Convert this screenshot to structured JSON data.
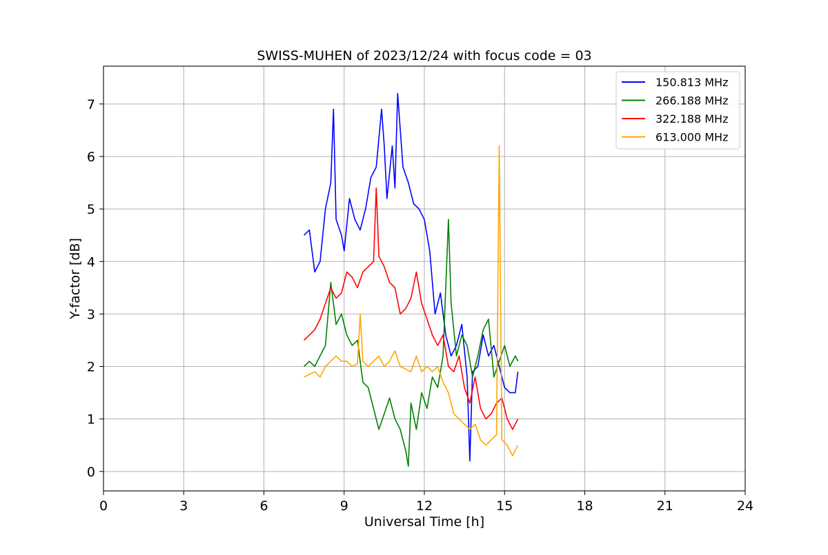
{
  "chart_data": {
    "type": "line",
    "title": "SWISS-MUHEN of 2023/12/24 with focus code = 03",
    "xlabel": "Universal Time [h]",
    "ylabel": "Y-factor [dB]",
    "xlim": [
      0,
      24
    ],
    "ylim": [
      -0.37,
      7.72
    ],
    "xticks": [
      0,
      3,
      6,
      9,
      12,
      15,
      18,
      21,
      24
    ],
    "yticks": [
      0,
      1,
      2,
      3,
      4,
      5,
      6,
      7
    ],
    "grid": true,
    "legend_position": "top-right",
    "series": [
      {
        "name": "150.813 MHz",
        "color": "#0000ff",
        "x": [
          7.5,
          7.7,
          7.9,
          8.1,
          8.3,
          8.5,
          8.6,
          8.7,
          8.9,
          9.0,
          9.2,
          9.4,
          9.6,
          9.8,
          10.0,
          10.2,
          10.4,
          10.5,
          10.6,
          10.8,
          10.9,
          11.0,
          11.2,
          11.4,
          11.6,
          11.8,
          12.0,
          12.2,
          12.4,
          12.6,
          12.8,
          13.0,
          13.2,
          13.4,
          13.6,
          13.7,
          13.8,
          14.0,
          14.2,
          14.4,
          14.6,
          14.8,
          15.0,
          15.2,
          15.4,
          15.5
        ],
        "values": [
          4.5,
          4.6,
          3.8,
          4.0,
          5.0,
          5.5,
          6.9,
          4.8,
          4.5,
          4.2,
          5.2,
          4.8,
          4.6,
          5.0,
          5.6,
          5.8,
          6.9,
          6.2,
          5.2,
          6.2,
          5.4,
          7.2,
          5.8,
          5.5,
          5.1,
          5.0,
          4.8,
          4.2,
          3.0,
          3.4,
          2.6,
          2.2,
          2.4,
          2.8,
          1.8,
          0.2,
          1.9,
          2.0,
          2.6,
          2.2,
          2.4,
          2.0,
          1.6,
          1.5,
          1.5,
          1.9
        ]
      },
      {
        "name": "266.188 MHz",
        "color": "#008000",
        "x": [
          7.5,
          7.7,
          7.9,
          8.1,
          8.3,
          8.5,
          8.7,
          8.9,
          9.1,
          9.3,
          9.5,
          9.7,
          9.9,
          10.1,
          10.3,
          10.5,
          10.7,
          10.9,
          11.1,
          11.3,
          11.4,
          11.5,
          11.7,
          11.9,
          12.1,
          12.3,
          12.5,
          12.7,
          12.9,
          13.0,
          13.2,
          13.4,
          13.6,
          13.8,
          14.0,
          14.2,
          14.4,
          14.6,
          14.8,
          15.0,
          15.2,
          15.4,
          15.5
        ],
        "values": [
          2.0,
          2.1,
          2.0,
          2.2,
          2.4,
          3.6,
          2.8,
          3.0,
          2.6,
          2.4,
          2.5,
          1.7,
          1.6,
          1.2,
          0.8,
          1.1,
          1.4,
          1.0,
          0.8,
          0.4,
          0.1,
          1.3,
          0.8,
          1.5,
          1.2,
          1.8,
          1.6,
          2.2,
          4.8,
          3.2,
          2.2,
          2.6,
          2.4,
          1.8,
          2.2,
          2.7,
          2.9,
          1.8,
          2.1,
          2.4,
          2.0,
          2.2,
          2.1
        ]
      },
      {
        "name": "322.188 MHz",
        "color": "#ff0000",
        "x": [
          7.5,
          7.7,
          7.9,
          8.1,
          8.3,
          8.5,
          8.7,
          8.9,
          9.1,
          9.3,
          9.5,
          9.7,
          9.9,
          10.1,
          10.2,
          10.3,
          10.5,
          10.7,
          10.9,
          11.1,
          11.3,
          11.5,
          11.7,
          11.9,
          12.1,
          12.3,
          12.5,
          12.7,
          12.9,
          13.1,
          13.3,
          13.5,
          13.7,
          13.9,
          14.1,
          14.3,
          14.5,
          14.7,
          14.9,
          15.1,
          15.3,
          15.5
        ],
        "values": [
          2.5,
          2.6,
          2.7,
          2.9,
          3.2,
          3.5,
          3.3,
          3.4,
          3.8,
          3.7,
          3.5,
          3.8,
          3.9,
          4.0,
          5.4,
          4.1,
          3.9,
          3.6,
          3.5,
          3.0,
          3.1,
          3.3,
          3.8,
          3.2,
          2.9,
          2.6,
          2.4,
          2.6,
          2.0,
          1.9,
          2.2,
          1.6,
          1.3,
          1.8,
          1.2,
          1.0,
          1.1,
          1.3,
          1.4,
          1.0,
          0.8,
          1.0
        ]
      },
      {
        "name": "613.000 MHz",
        "color": "#ffa500",
        "x": [
          7.5,
          7.7,
          7.9,
          8.1,
          8.3,
          8.5,
          8.7,
          8.9,
          9.1,
          9.3,
          9.5,
          9.6,
          9.7,
          9.9,
          10.1,
          10.3,
          10.5,
          10.7,
          10.9,
          11.1,
          11.3,
          11.5,
          11.7,
          11.9,
          12.1,
          12.3,
          12.5,
          12.7,
          12.9,
          13.1,
          13.3,
          13.5,
          13.7,
          13.9,
          14.1,
          14.3,
          14.5,
          14.7,
          14.8,
          14.9,
          15.1,
          15.3,
          15.5
        ],
        "values": [
          1.8,
          1.85,
          1.9,
          1.8,
          2.0,
          2.1,
          2.2,
          2.1,
          2.1,
          2.0,
          2.05,
          3.0,
          2.1,
          2.0,
          2.1,
          2.2,
          2.0,
          2.1,
          2.3,
          2.0,
          1.95,
          1.9,
          2.2,
          1.9,
          2.0,
          1.9,
          2.0,
          1.7,
          1.5,
          1.1,
          1.0,
          0.9,
          0.8,
          0.9,
          0.6,
          0.5,
          0.6,
          0.7,
          6.2,
          0.6,
          0.5,
          0.3,
          0.5
        ]
      }
    ]
  }
}
